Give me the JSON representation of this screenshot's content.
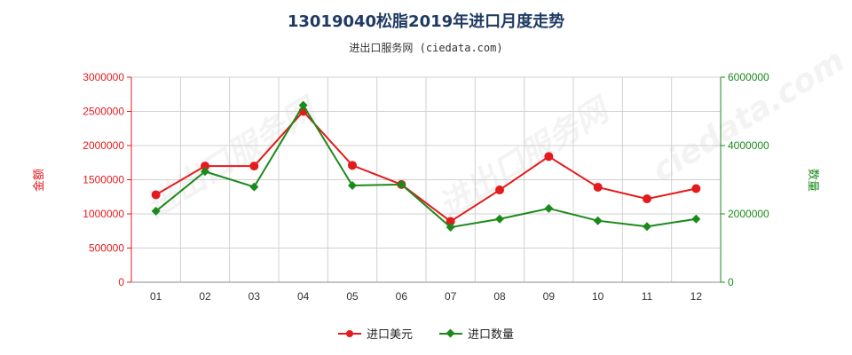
{
  "chart_data": {
    "type": "line",
    "title": "13019040松脂2019年进口月度走势",
    "subtitle": "进出口服务网 (ciedata.com)",
    "categories": [
      "01",
      "02",
      "03",
      "04",
      "05",
      "06",
      "07",
      "08",
      "09",
      "10",
      "11",
      "12"
    ],
    "series": [
      {
        "name": "进口美元",
        "axis": "left",
        "color": "#e41a1c",
        "marker": "circle",
        "values": [
          1280000,
          1700000,
          1700000,
          2500000,
          1710000,
          1430000,
          890000,
          1350000,
          1840000,
          1390000,
          1220000,
          1370000
        ]
      },
      {
        "name": "进口数量",
        "axis": "right",
        "color": "#1a8a1a",
        "marker": "diamond",
        "values": [
          2080000,
          3240000,
          2790000,
          5180000,
          2830000,
          2860000,
          1610000,
          1850000,
          2160000,
          1800000,
          1630000,
          1850000
        ]
      }
    ],
    "ylabel_left": "金额",
    "ylabel_right": "数量",
    "ylim_left": [
      0,
      3000000
    ],
    "ylim_right": [
      0,
      6000000
    ],
    "yticks_left": [
      "0",
      "500000",
      "1000000",
      "1500000",
      "2000000",
      "2500000",
      "3000000"
    ],
    "yticks_right": [
      "0",
      "2000000",
      "4000000",
      "6000000"
    ],
    "left_axis_color": "#e41a1c",
    "right_axis_color": "#1a8a1a",
    "grid": true,
    "legend_position": "bottom"
  }
}
